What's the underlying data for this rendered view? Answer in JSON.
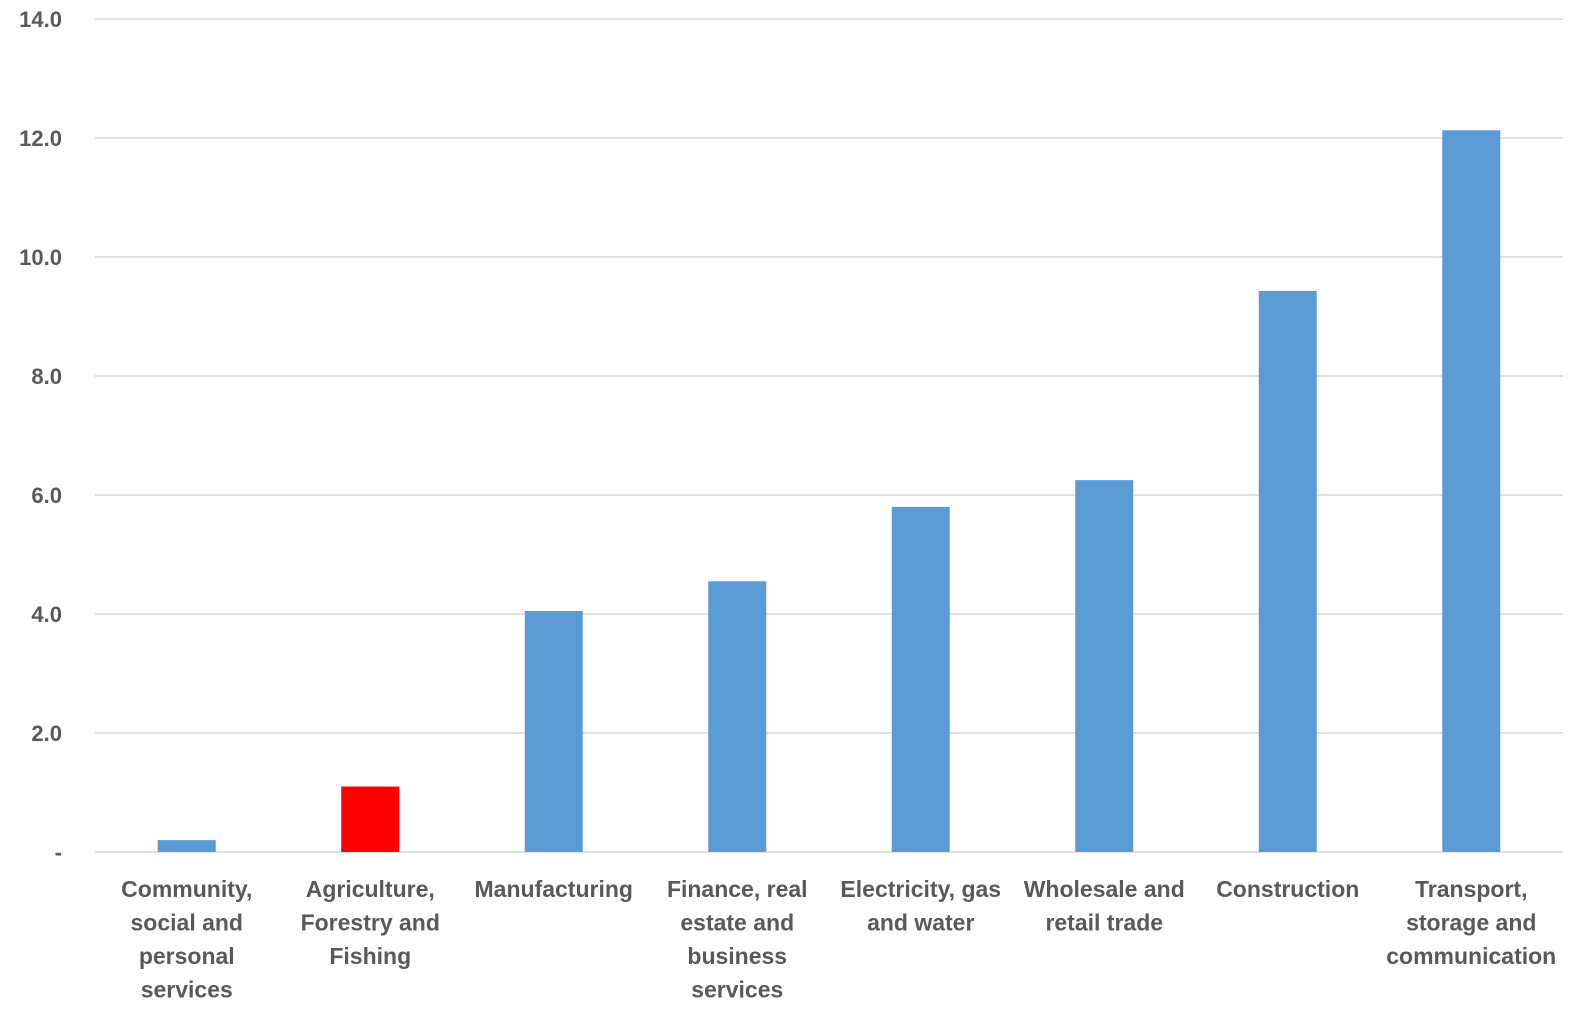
{
  "chart_data": {
    "type": "bar",
    "title": "",
    "xlabel": "",
    "ylabel": "",
    "categories": [
      [
        "Community,",
        "social and",
        "personal",
        "services"
      ],
      [
        "Agriculture,",
        "Forestry and",
        "Fishing"
      ],
      [
        "Manufacturing"
      ],
      [
        "Finance, real",
        "estate and",
        "business",
        "services"
      ],
      [
        "Electricity, gas",
        "and water"
      ],
      [
        "Wholesale and",
        "retail trade"
      ],
      [
        "Construction"
      ],
      [
        "Transport,",
        "storage and",
        "communication"
      ]
    ],
    "values": [
      0.2,
      1.1,
      4.05,
      4.55,
      5.8,
      6.25,
      9.43,
      12.13
    ],
    "colors": [
      "#5B9BD5",
      "#FF0000",
      "#5B9BD5",
      "#5B9BD5",
      "#5B9BD5",
      "#5B9BD5",
      "#5B9BD5",
      "#5B9BD5"
    ],
    "ylim": [
      0,
      14
    ],
    "yticks": [
      0,
      2,
      4,
      6,
      8,
      10,
      12,
      14
    ],
    "ytick_labels": [
      "-",
      "2.0",
      "4.0",
      "6.0",
      "8.0",
      "10.0",
      "12.0",
      "14.0"
    ],
    "grid": true,
    "gridline_color": "#D9D9D9",
    "legend": "none"
  }
}
